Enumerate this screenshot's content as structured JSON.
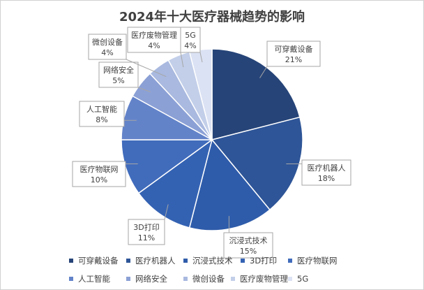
{
  "chart_data": {
    "type": "pie",
    "title": "2024年十大医疗器械趋势的影响",
    "slices": [
      {
        "label": "可穿戴设备",
        "value": 21,
        "pct_label": "21%",
        "color": "#264478"
      },
      {
        "label": "医疗机器人",
        "value": 18,
        "pct_label": "18%",
        "color": "#2e5597"
      },
      {
        "label": "沉浸式技术",
        "value": 15,
        "pct_label": "15%",
        "color": "#2f5caa"
      },
      {
        "label": "3D打印",
        "value": 11,
        "pct_label": "11%",
        "color": "#3462b3"
      },
      {
        "label": "医疗物联网",
        "value": 10,
        "pct_label": "10%",
        "color": "#416cbc"
      },
      {
        "label": "人工智能",
        "value": 8,
        "pct_label": "8%",
        "color": "#6383c9"
      },
      {
        "label": "网络安全",
        "value": 5,
        "pct_label": "5%",
        "color": "#8ba0d5"
      },
      {
        "label": "微创设备",
        "value": 4,
        "pct_label": "4%",
        "color": "#a9b9df"
      },
      {
        "label": "医疗废物管理",
        "value": 4,
        "pct_label": "4%",
        "color": "#c3cfe9"
      },
      {
        "label": "5G",
        "value": 4,
        "pct_label": "4%",
        "color": "#dbe2f3"
      }
    ],
    "legend_position": "bottom",
    "data_labels": "callout boxes with category name and percentage"
  }
}
